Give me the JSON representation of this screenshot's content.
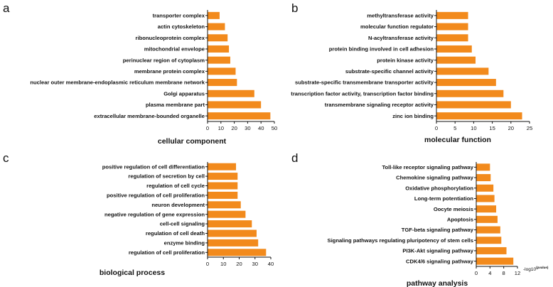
{
  "figure": {
    "colors": {
      "bar": "#f28a1c",
      "axis": "#111111",
      "background": "#ffffff"
    }
  },
  "chart_data": [
    {
      "type": "bar",
      "orientation": "horizontal",
      "panel": "a",
      "title": "",
      "xlabel": "cellular component",
      "ylabel": "",
      "categories": [
        "transporter complex",
        "actin cytoskeleton",
        "ribonucleoprotein complex",
        "mitochondrial envelope",
        "perinuclear region of cytoplasm",
        "membrane protein complex",
        "nuclear outer membrane-endoplasmic reticulum membrane network",
        "Golgi apparatus",
        "plasma membrane part",
        "extracellular membrane-bounded organelle"
      ],
      "values": [
        9,
        13,
        15,
        16,
        17,
        21,
        22,
        35,
        40,
        47
      ],
      "xlim": [
        0,
        50
      ],
      "xticks": [
        0,
        10,
        20,
        30,
        40,
        50
      ],
      "grid": false
    },
    {
      "type": "bar",
      "orientation": "horizontal",
      "panel": "b",
      "title": "",
      "xlabel": "molecular function",
      "ylabel": "",
      "categories": [
        "methyltransferase activity",
        "molecular function regulator",
        "N-acyltransferase activity",
        "protein binding involved in cell adhesion",
        "protein kinase activity",
        "substrate-specific channel activity",
        "substrate-specific transmembrane transporter activity",
        "transcription factor activity, transcription factor binding",
        "transmembrane signaling receptor activity",
        "zinc ion binding"
      ],
      "values": [
        8.5,
        8.5,
        8.5,
        9.5,
        10.5,
        14,
        16,
        18,
        20,
        23
      ],
      "xlim": [
        0,
        25
      ],
      "xticks": [
        0,
        5,
        10,
        15,
        20,
        25
      ],
      "grid": false
    },
    {
      "type": "bar",
      "orientation": "horizontal",
      "panel": "c",
      "title": "",
      "xlabel": "biological process",
      "ylabel": "",
      "categories": [
        "positive regulation of cell differentiation",
        "regulation of secretion by cell",
        "regulation of cell cycle",
        "positive regulation of cell proliferation",
        "neuron development",
        "negative regulation of gene expression",
        "cell-cell signaling",
        "regulation of cell death",
        "enzyme binding",
        "regulation of cell proliferation"
      ],
      "values": [
        18,
        19,
        19,
        19,
        21,
        24,
        28,
        31,
        32,
        37
      ],
      "xlim": [
        0,
        40
      ],
      "xticks": [
        0,
        10,
        20,
        30,
        40
      ],
      "grid": false
    },
    {
      "type": "bar",
      "orientation": "horizontal",
      "panel": "d",
      "title": "",
      "xlabel": "pathway analysis",
      "ylabel": "",
      "unit_label": "-log10",
      "unit_superscript": "(pvalue)",
      "categories": [
        "Toll-like receptor signaling pathway",
        "Chemokine signaling pathway",
        "Oxidative phosphorylation",
        "Long-term potentiation",
        "Oocyte meiosis",
        "Apoptosis",
        "TGF-beta signaling pathway",
        "Signaling pathways regulating pluripotency of stem cells",
        "PI3K-Akt signaling pathway",
        "CDK4/6 signaling pathway"
      ],
      "values": [
        4,
        4.2,
        5,
        5.3,
        5.8,
        6.2,
        7,
        7.3,
        8.8,
        10.8
      ],
      "xlim": [
        0,
        12
      ],
      "xticks": [
        0,
        4,
        8,
        12
      ],
      "grid": false
    }
  ]
}
